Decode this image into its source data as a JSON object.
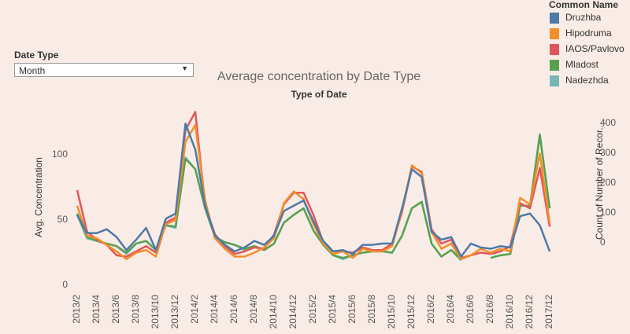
{
  "dashboard": {
    "filter": {
      "label": "Date Type",
      "selected": "Month"
    }
  },
  "chart_data": {
    "type": "line",
    "title": "Average concentration by Date Type",
    "subtitle": "Type of Date",
    "y_label": "Avg. Concentration",
    "y2_label": "Count of Number of Recor..",
    "legend_title": "Common Name",
    "legend_position": "top-right",
    "categories": [
      "2013/2",
      null,
      "2013/4",
      null,
      "2013/6",
      null,
      "2013/8",
      null,
      "2013/10",
      null,
      "2013/12",
      null,
      "2014/2",
      null,
      "2014/4",
      null,
      "2014/6",
      null,
      "2014/8",
      null,
      "2014/10",
      null,
      "2014/12",
      null,
      "2015/2",
      null,
      "2015/4",
      null,
      "2015/6",
      null,
      "2015/8",
      null,
      "2015/10",
      null,
      "2015/12",
      null,
      "2016/2",
      null,
      "2016/4",
      null,
      "2016/6",
      null,
      "2016/8",
      null,
      "2016/10",
      null,
      "2016/12",
      null,
      "2017/12"
    ],
    "ylim": [
      0,
      135
    ],
    "yticks": [
      0,
      50,
      100
    ],
    "y2lim": [
      -142,
      447
    ],
    "y2ticks": [
      0,
      100,
      200,
      300,
      400
    ],
    "series": [
      {
        "name": "Druzhba",
        "color": "#4e79a7",
        "values": [
          54,
          40,
          40,
          43,
          37,
          27,
          35,
          44,
          27,
          51,
          55,
          124,
          104,
          61,
          38,
          31,
          26,
          29,
          34,
          31,
          38,
          57,
          61,
          65,
          49,
          34,
          26,
          27,
          24,
          31,
          31,
          32,
          32,
          59,
          89,
          83,
          41,
          35,
          37,
          22,
          32,
          29,
          28,
          30,
          29,
          53,
          55,
          46,
          26
        ]
      },
      {
        "name": "Hipodruma",
        "color": "#f28e2b",
        "values": [
          61,
          38,
          36,
          31,
          26,
          20,
          25,
          27,
          22,
          47,
          50,
          110,
          123,
          65,
          36,
          28,
          22,
          22,
          25,
          29,
          36,
          63,
          72,
          66,
          47,
          32,
          24,
          26,
          21,
          28,
          26,
          26,
          30,
          57,
          92,
          86,
          41,
          28,
          32,
          20,
          23,
          28,
          25,
          28,
          26,
          67,
          62,
          101,
          48
        ]
      },
      {
        "name": "IAOS/Pavlovo",
        "color": "#e15759",
        "values": [
          73,
          41,
          35,
          31,
          23,
          22,
          26,
          30,
          25,
          48,
          52,
          119,
          133,
          61,
          39,
          30,
          24,
          26,
          29,
          28,
          39,
          62,
          71,
          71,
          54,
          33,
          26,
          26,
          25,
          29,
          27,
          27,
          32,
          56,
          91,
          87,
          43,
          32,
          35,
          21,
          23,
          25,
          24,
          26,
          30,
          63,
          59,
          90,
          45
        ]
      },
      {
        "name": "Mladost",
        "color": "#59a14f",
        "values": [
          55,
          37,
          34,
          32,
          30,
          25,
          32,
          34,
          27,
          46,
          45,
          97,
          89,
          59,
          37,
          33,
          31,
          28,
          30,
          27,
          32,
          48,
          54,
          59,
          42,
          31,
          23,
          21,
          23,
          25,
          26,
          26,
          25,
          38,
          59,
          64,
          32,
          22,
          27,
          20,
          null,
          null,
          21,
          23,
          24,
          61,
          61,
          115,
          59
        ]
      },
      {
        "name": "Nadezhda",
        "color": "#76b7b2",
        "values": [
          54,
          36,
          34,
          32,
          30,
          24,
          32,
          34,
          27,
          46,
          44,
          98,
          89,
          59,
          37,
          33,
          31,
          27,
          30,
          27,
          32,
          48,
          54,
          59,
          42,
          31,
          23,
          20,
          23,
          25,
          26,
          26,
          25,
          38,
          59,
          64,
          32,
          22,
          27,
          19,
          null,
          null,
          21,
          23,
          24,
          61,
          61,
          116,
          59
        ]
      }
    ]
  }
}
